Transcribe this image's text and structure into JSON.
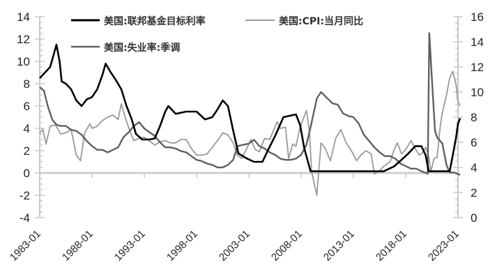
{
  "chart_data": {
    "type": "line",
    "title": "",
    "xlabel": "",
    "ylabel_left": "",
    "ylabel_right": "",
    "x_tick_labels": [
      "1983-01",
      "1988-01",
      "1993-01",
      "1998-01",
      "2003-01",
      "2008-01",
      "2013-01",
      "2018-01",
      "2023-01"
    ],
    "y_left_ticks": [
      14,
      12,
      10,
      8,
      6,
      4,
      2,
      0,
      -2,
      -4
    ],
    "y_left_range": [
      -4,
      14
    ],
    "y_right_ticks": [
      16,
      14,
      12,
      10,
      8,
      6,
      4,
      2,
      0
    ],
    "y_right_range": [
      0,
      16
    ],
    "grid": false,
    "legend_position": "top",
    "series": [
      {
        "name": "美国:联邦基金目标利率",
        "axis": "left",
        "color": "#000000",
        "points": [
          [
            1983.0,
            8.5
          ],
          [
            1983.5,
            9.0
          ],
          [
            1984.0,
            9.5
          ],
          [
            1984.3,
            10.5
          ],
          [
            1984.6,
            11.5
          ],
          [
            1984.9,
            10.0
          ],
          [
            1985.1,
            8.2
          ],
          [
            1985.5,
            8.0
          ],
          [
            1986.0,
            7.5
          ],
          [
            1986.5,
            6.5
          ],
          [
            1987.0,
            6.0
          ],
          [
            1987.5,
            6.6
          ],
          [
            1988.0,
            6.8
          ],
          [
            1988.5,
            7.5
          ],
          [
            1989.0,
            8.8
          ],
          [
            1989.3,
            9.8
          ],
          [
            1989.8,
            9.0
          ],
          [
            1990.3,
            8.3
          ],
          [
            1990.8,
            7.5
          ],
          [
            1991.3,
            6.0
          ],
          [
            1991.8,
            4.8
          ],
          [
            1992.2,
            3.5
          ],
          [
            1992.8,
            3.0
          ],
          [
            1993.5,
            3.0
          ],
          [
            1994.0,
            3.1
          ],
          [
            1994.5,
            4.2
          ],
          [
            1995.0,
            5.5
          ],
          [
            1995.3,
            6.0
          ],
          [
            1996.0,
            5.3
          ],
          [
            1997.0,
            5.5
          ],
          [
            1998.0,
            5.5
          ],
          [
            1998.8,
            4.8
          ],
          [
            1999.5,
            5.0
          ],
          [
            2000.0,
            5.7
          ],
          [
            2000.5,
            6.5
          ],
          [
            2001.0,
            6.0
          ],
          [
            2001.5,
            3.8
          ],
          [
            2002.0,
            1.75
          ],
          [
            2002.8,
            1.3
          ],
          [
            2003.5,
            1.0
          ],
          [
            2004.3,
            1.0
          ],
          [
            2004.8,
            2.0
          ],
          [
            2005.5,
            3.3
          ],
          [
            2006.3,
            5.0
          ],
          [
            2007.5,
            5.25
          ],
          [
            2007.9,
            4.3
          ],
          [
            2008.3,
            2.2
          ],
          [
            2008.9,
            0.15
          ],
          [
            2015.9,
            0.15
          ],
          [
            2016.9,
            0.6
          ],
          [
            2017.5,
            1.1
          ],
          [
            2018.2,
            1.7
          ],
          [
            2018.9,
            2.4
          ],
          [
            2019.5,
            2.4
          ],
          [
            2019.9,
            1.6
          ],
          [
            2020.2,
            0.15
          ],
          [
            2022.2,
            0.15
          ],
          [
            2022.5,
            1.6
          ],
          [
            2022.8,
            3.1
          ],
          [
            2023.0,
            4.4
          ],
          [
            2023.2,
            4.9
          ]
        ]
      },
      {
        "name": "美国:CPI:当月同比",
        "axis": "left",
        "color": "#9a9a9a",
        "points": [
          [
            1983.0,
            3.6
          ],
          [
            1983.3,
            3.9
          ],
          [
            1983.6,
            2.6
          ],
          [
            1984.0,
            4.2
          ],
          [
            1984.5,
            4.3
          ],
          [
            1985.0,
            3.5
          ],
          [
            1985.5,
            3.6
          ],
          [
            1986.0,
            3.9
          ],
          [
            1986.5,
            1.6
          ],
          [
            1986.9,
            1.1
          ],
          [
            1987.3,
            3.6
          ],
          [
            1987.8,
            4.4
          ],
          [
            1988.0,
            4.0
          ],
          [
            1988.5,
            4.2
          ],
          [
            1989.0,
            4.7
          ],
          [
            1989.5,
            5.0
          ],
          [
            1990.0,
            5.2
          ],
          [
            1990.5,
            4.8
          ],
          [
            1990.8,
            6.2
          ],
          [
            1991.2,
            4.9
          ],
          [
            1991.6,
            3.8
          ],
          [
            1992.0,
            2.9
          ],
          [
            1992.5,
            3.1
          ],
          [
            1993.0,
            3.2
          ],
          [
            1993.6,
            2.8
          ],
          [
            1994.0,
            2.5
          ],
          [
            1994.5,
            2.8
          ],
          [
            1995.0,
            2.9
          ],
          [
            1995.5,
            2.7
          ],
          [
            1996.0,
            2.7
          ],
          [
            1996.5,
            3.0
          ],
          [
            1997.0,
            3.0
          ],
          [
            1997.5,
            2.2
          ],
          [
            1998.0,
            1.6
          ],
          [
            1998.5,
            1.6
          ],
          [
            1999.0,
            1.7
          ],
          [
            1999.5,
            2.3
          ],
          [
            2000.0,
            2.9
          ],
          [
            2000.5,
            3.6
          ],
          [
            2001.0,
            3.4
          ],
          [
            2001.5,
            2.7
          ],
          [
            2001.9,
            1.6
          ],
          [
            2002.3,
            1.3
          ],
          [
            2002.8,
            2.2
          ],
          [
            2003.2,
            3.0
          ],
          [
            2003.6,
            2.1
          ],
          [
            2004.0,
            1.9
          ],
          [
            2004.5,
            3.1
          ],
          [
            2005.0,
            3.0
          ],
          [
            2005.7,
            4.6
          ],
          [
            2006.0,
            4.0
          ],
          [
            2006.5,
            4.1
          ],
          [
            2006.8,
            1.3
          ],
          [
            2007.2,
            2.6
          ],
          [
            2007.5,
            2.4
          ],
          [
            2007.9,
            4.1
          ],
          [
            2008.5,
            5.6
          ],
          [
            2008.8,
            3.7
          ],
          [
            2009.0,
            0.1
          ],
          [
            2009.5,
            -2.0
          ],
          [
            2009.9,
            2.7
          ],
          [
            2010.3,
            2.2
          ],
          [
            2010.8,
            1.1
          ],
          [
            2011.3,
            3.1
          ],
          [
            2011.8,
            3.9
          ],
          [
            2012.3,
            2.7
          ],
          [
            2012.8,
            2.0
          ],
          [
            2013.3,
            1.1
          ],
          [
            2013.7,
            1.6
          ],
          [
            2014.2,
            2.0
          ],
          [
            2014.7,
            1.7
          ],
          [
            2015.0,
            -0.1
          ],
          [
            2015.5,
            0.2
          ],
          [
            2015.9,
            0.6
          ],
          [
            2016.5,
            1.0
          ],
          [
            2016.9,
            2.1
          ],
          [
            2017.2,
            2.7
          ],
          [
            2017.6,
            1.7
          ],
          [
            2018.0,
            2.1
          ],
          [
            2018.5,
            2.9
          ],
          [
            2018.9,
            2.2
          ],
          [
            2019.3,
            1.6
          ],
          [
            2019.6,
            1.8
          ],
          [
            2019.9,
            2.3
          ],
          [
            2020.2,
            1.5
          ],
          [
            2020.4,
            0.1
          ],
          [
            2020.7,
            1.3
          ],
          [
            2021.0,
            1.4
          ],
          [
            2021.3,
            4.2
          ],
          [
            2021.5,
            5.4
          ],
          [
            2021.9,
            7.0
          ],
          [
            2022.2,
            8.5
          ],
          [
            2022.5,
            9.1
          ],
          [
            2022.8,
            8.0
          ],
          [
            2023.0,
            6.4
          ],
          [
            2023.2,
            6.0
          ]
        ]
      },
      {
        "name": "美国:失业率:季调",
        "axis": "right",
        "color": "#606060",
        "points": [
          [
            1983.0,
            10.4
          ],
          [
            1983.4,
            10.1
          ],
          [
            1983.8,
            8.8
          ],
          [
            1984.2,
            7.8
          ],
          [
            1984.6,
            7.4
          ],
          [
            1985.0,
            7.3
          ],
          [
            1985.5,
            7.3
          ],
          [
            1986.0,
            7.0
          ],
          [
            1986.5,
            6.9
          ],
          [
            1987.0,
            6.6
          ],
          [
            1987.5,
            6.1
          ],
          [
            1988.0,
            5.7
          ],
          [
            1988.5,
            5.4
          ],
          [
            1989.0,
            5.4
          ],
          [
            1989.5,
            5.2
          ],
          [
            1990.0,
            5.4
          ],
          [
            1990.5,
            5.6
          ],
          [
            1991.0,
            6.4
          ],
          [
            1991.5,
            6.8
          ],
          [
            1992.0,
            7.3
          ],
          [
            1992.5,
            7.6
          ],
          [
            1993.0,
            7.1
          ],
          [
            1993.5,
            6.8
          ],
          [
            1994.0,
            6.5
          ],
          [
            1994.5,
            6.0
          ],
          [
            1995.0,
            5.6
          ],
          [
            1995.5,
            5.6
          ],
          [
            1996.0,
            5.5
          ],
          [
            1996.5,
            5.3
          ],
          [
            1997.0,
            5.2
          ],
          [
            1997.5,
            4.9
          ],
          [
            1998.0,
            4.6
          ],
          [
            1998.5,
            4.5
          ],
          [
            1999.0,
            4.3
          ],
          [
            1999.5,
            4.2
          ],
          [
            2000.0,
            4.0
          ],
          [
            2000.5,
            4.0
          ],
          [
            2001.0,
            4.2
          ],
          [
            2001.5,
            4.6
          ],
          [
            2001.9,
            5.7
          ],
          [
            2002.5,
            5.8
          ],
          [
            2003.0,
            5.9
          ],
          [
            2003.5,
            6.2
          ],
          [
            2004.0,
            5.7
          ],
          [
            2004.5,
            5.5
          ],
          [
            2005.0,
            5.2
          ],
          [
            2005.5,
            5.0
          ],
          [
            2006.0,
            4.7
          ],
          [
            2006.5,
            4.6
          ],
          [
            2007.0,
            4.6
          ],
          [
            2007.5,
            4.7
          ],
          [
            2008.0,
            5.0
          ],
          [
            2008.5,
            5.8
          ],
          [
            2008.9,
            7.2
          ],
          [
            2009.5,
            9.5
          ],
          [
            2009.9,
            10.0
          ],
          [
            2010.5,
            9.5
          ],
          [
            2011.0,
            9.1
          ],
          [
            2011.5,
            9.0
          ],
          [
            2012.0,
            8.3
          ],
          [
            2012.5,
            8.1
          ],
          [
            2013.0,
            8.0
          ],
          [
            2013.5,
            7.5
          ],
          [
            2014.0,
            6.6
          ],
          [
            2014.5,
            6.1
          ],
          [
            2015.0,
            5.6
          ],
          [
            2015.5,
            5.2
          ],
          [
            2016.0,
            4.9
          ],
          [
            2016.5,
            4.9
          ],
          [
            2017.0,
            4.7
          ],
          [
            2017.5,
            4.3
          ],
          [
            2018.0,
            4.1
          ],
          [
            2018.5,
            3.9
          ],
          [
            2019.0,
            3.9
          ],
          [
            2019.5,
            3.7
          ],
          [
            2020.1,
            3.5
          ],
          [
            2020.25,
            14.7
          ],
          [
            2020.5,
            11.1
          ],
          [
            2020.8,
            6.9
          ],
          [
            2021.0,
            6.4
          ],
          [
            2021.5,
            5.9
          ],
          [
            2021.9,
            4.2
          ],
          [
            2022.2,
            3.6
          ],
          [
            2022.6,
            3.6
          ],
          [
            2022.9,
            3.5
          ],
          [
            2023.2,
            3.4
          ]
        ]
      }
    ]
  },
  "legend": {
    "items": [
      {
        "label": "美国:联邦基金目标利率",
        "color": "#000000"
      },
      {
        "label": "美国:CPI:当月同比",
        "color": "#9a9a9a"
      },
      {
        "label": "美国:失业率:季调",
        "color": "#606060"
      }
    ]
  },
  "axes": {
    "left": [
      "14",
      "12",
      "10",
      "8",
      "6",
      "4",
      "2",
      "0",
      "-2",
      "-4"
    ],
    "right": [
      "16",
      "14",
      "12",
      "10",
      "8",
      "6",
      "4",
      "2",
      "0"
    ],
    "x": [
      "1983-01",
      "1988-01",
      "1993-01",
      "1998-01",
      "2003-01",
      "2008-01",
      "2013-01",
      "2018-01",
      "2023-01"
    ]
  }
}
